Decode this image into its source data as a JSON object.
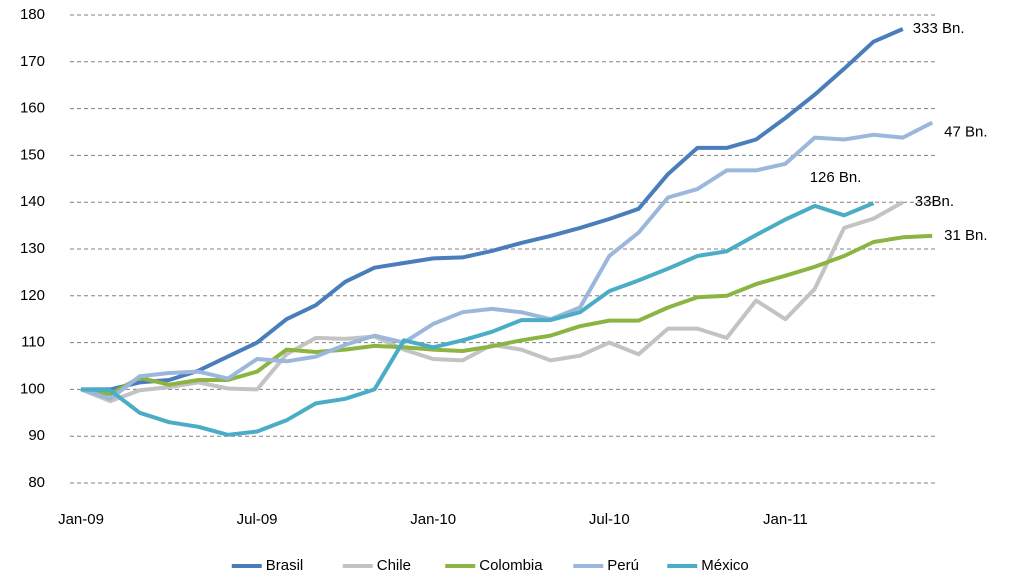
{
  "chart_data": {
    "type": "line",
    "categories": [
      "Jan-09",
      null,
      null,
      null,
      null,
      null,
      "Jul-09",
      null,
      null,
      null,
      null,
      null,
      "Jan-10",
      null,
      null,
      null,
      null,
      null,
      "Jul-10",
      null,
      null,
      null,
      null,
      null,
      "Jan-11",
      null,
      null,
      null,
      null,
      null
    ],
    "ylim": [
      80,
      180
    ],
    "yticks": [
      80,
      90,
      100,
      110,
      120,
      130,
      140,
      150,
      160,
      170,
      180
    ],
    "grid": true,
    "legend": "bottom",
    "series": [
      {
        "name": "Brasil",
        "color": "#4a7ebb",
        "end_label": "333 Bn.",
        "values": [
          100,
          100,
          101.5,
          102,
          104,
          107,
          110,
          115,
          118,
          123,
          126,
          127,
          128,
          128.2,
          129.6,
          131.3,
          132.8,
          134.5,
          136.4,
          138.6,
          146,
          151.6,
          151.6,
          153.4,
          158,
          163,
          168.5,
          174.3,
          177,
          null
        ]
      },
      {
        "name": "Chile",
        "color": "#c3c3c3",
        "end_label": "33Bn.",
        "values": [
          100,
          97.5,
          99.8,
          100.5,
          101.5,
          100.2,
          100,
          107.5,
          111,
          110.8,
          111.3,
          108.5,
          106.5,
          106.2,
          109.5,
          108.5,
          106.2,
          107.2,
          110,
          107.5,
          113,
          113,
          111,
          119,
          115,
          121.5,
          134.5,
          136.5,
          140,
          null
        ]
      },
      {
        "name": "Colombia",
        "color": "#8cb443",
        "end_label": "31 Bn.",
        "values": [
          100,
          99,
          102.5,
          101,
          102,
          102,
          103.8,
          108.5,
          108,
          108.5,
          109.3,
          109,
          108.5,
          108.2,
          109.2,
          110.5,
          111.5,
          113.5,
          114.7,
          114.7,
          117.5,
          119.7,
          120,
          122.5,
          124.3,
          126.2,
          128.5,
          131.5,
          132.5,
          132.8
        ]
      },
      {
        "name": "Perú",
        "color": "#9bb7dc",
        "end_label": "47 Bn.",
        "values": [
          100,
          98,
          102.8,
          103.5,
          103.8,
          102.3,
          106.5,
          106,
          107,
          109.5,
          111.5,
          110,
          114,
          116.5,
          117.2,
          116.5,
          115,
          117.5,
          128.5,
          133.5,
          141,
          142.8,
          146.8,
          146.8,
          148.2,
          153.8,
          153.4,
          154.4,
          153.8,
          157
        ]
      },
      {
        "name": "México",
        "color": "#4bacc6",
        "end_label": "126 Bn.",
        "values": [
          100,
          99.8,
          95,
          93,
          92,
          90.3,
          91,
          93.4,
          97,
          98,
          100,
          110.5,
          109,
          110.5,
          112.3,
          114.8,
          114.8,
          116.5,
          121,
          123.3,
          125.8,
          128.5,
          129.5,
          133,
          136.3,
          139.2,
          137.2,
          139.8,
          null,
          null
        ]
      }
    ]
  }
}
